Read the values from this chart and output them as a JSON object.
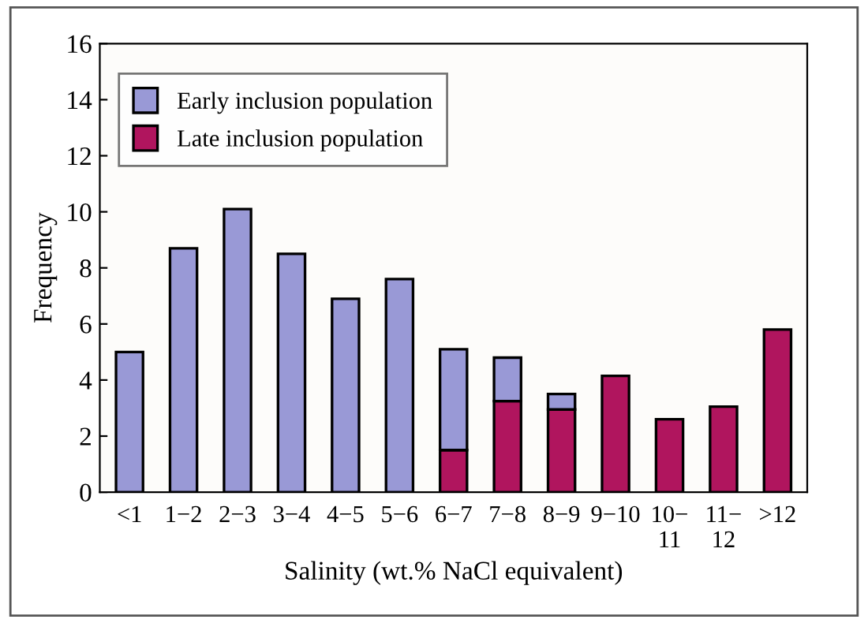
{
  "chart_data": {
    "type": "bar",
    "stacked": true,
    "xlabel": "Salinity (wt.% NaCl equivalent)",
    "ylabel": "Frequency",
    "categories": [
      "<1",
      "1−2",
      "2−3",
      "3−4",
      "4−5",
      "5−6",
      "6−7",
      "7−8",
      "8−9",
      "9−10",
      "10−\n11",
      "11−\n12",
      ">12"
    ],
    "series": [
      {
        "name": "Late inclusion population",
        "color": "#b0155e",
        "values": [
          null,
          null,
          null,
          null,
          null,
          null,
          1.5,
          3.25,
          2.95,
          4.15,
          2.6,
          3.05,
          5.8
        ]
      },
      {
        "name": "Early inclusion population",
        "color": "#9999d6",
        "values": [
          5.0,
          8.7,
          10.1,
          8.5,
          6.9,
          7.6,
          3.6,
          1.55,
          0.55,
          null,
          null,
          null,
          null
        ]
      }
    ],
    "ylim": [
      0,
      16
    ],
    "yticks": [
      0,
      2,
      4,
      6,
      8,
      10,
      12,
      14,
      16
    ],
    "grid": false,
    "legend": "top left"
  }
}
